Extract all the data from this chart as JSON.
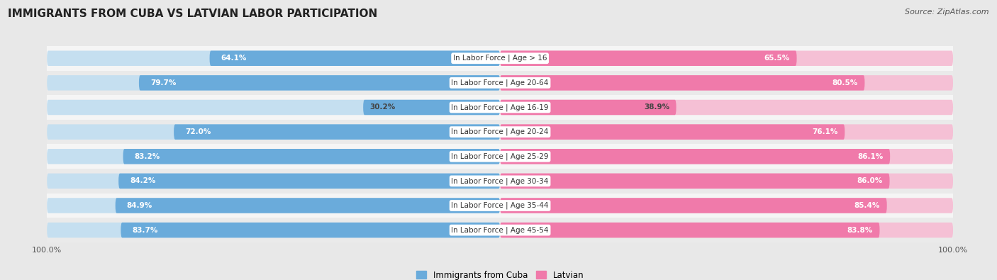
{
  "title": "IMMIGRANTS FROM CUBA VS LATVIAN LABOR PARTICIPATION",
  "source": "Source: ZipAtlas.com",
  "categories": [
    "In Labor Force | Age > 16",
    "In Labor Force | Age 20-64",
    "In Labor Force | Age 16-19",
    "In Labor Force | Age 20-24",
    "In Labor Force | Age 25-29",
    "In Labor Force | Age 30-34",
    "In Labor Force | Age 35-44",
    "In Labor Force | Age 45-54"
  ],
  "cuba_values": [
    64.1,
    79.7,
    30.2,
    72.0,
    83.2,
    84.2,
    84.9,
    83.7
  ],
  "latvian_values": [
    65.5,
    80.5,
    38.9,
    76.1,
    86.1,
    86.0,
    85.4,
    83.8
  ],
  "cuba_color": "#6aabdb",
  "cuba_color_light": "#c5dff0",
  "latvian_color": "#f07aaa",
  "latvian_color_light": "#f5c0d5",
  "bg_color": "#e8e8e8",
  "row_bg_even": "#f5f5f5",
  "row_bg_odd": "#eaeaea",
  "bar_height": 0.62,
  "legend_cuba": "Immigrants from Cuba",
  "legend_latvian": "Latvian",
  "axis_label_left": "100.0%",
  "axis_label_right": "100.0%",
  "max_val": 100.0,
  "title_fontsize": 11,
  "source_fontsize": 8,
  "label_fontsize": 7.5,
  "cat_fontsize": 7.5
}
